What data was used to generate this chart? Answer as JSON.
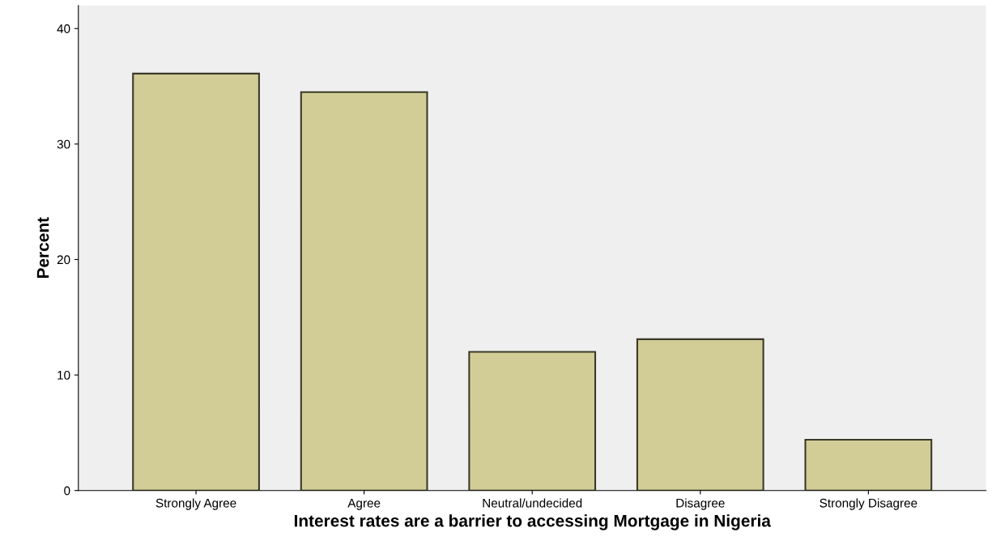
{
  "chart_data": {
    "type": "bar",
    "xlabel": "Interest rates are a barrier to accessing Mortgage in Nigeria",
    "ylabel": "Percent",
    "categories": [
      "Strongly Agree",
      "Agree",
      "Neutral/undecided",
      "Disagree",
      "Strongly Disagree"
    ],
    "values": [
      36.1,
      34.5,
      12.0,
      13.1,
      4.4
    ],
    "color": "#d2cd96",
    "ylim": [
      0,
      42
    ],
    "yticks": [
      0,
      10,
      20,
      30,
      40
    ],
    "grid": false,
    "legend": false
  }
}
